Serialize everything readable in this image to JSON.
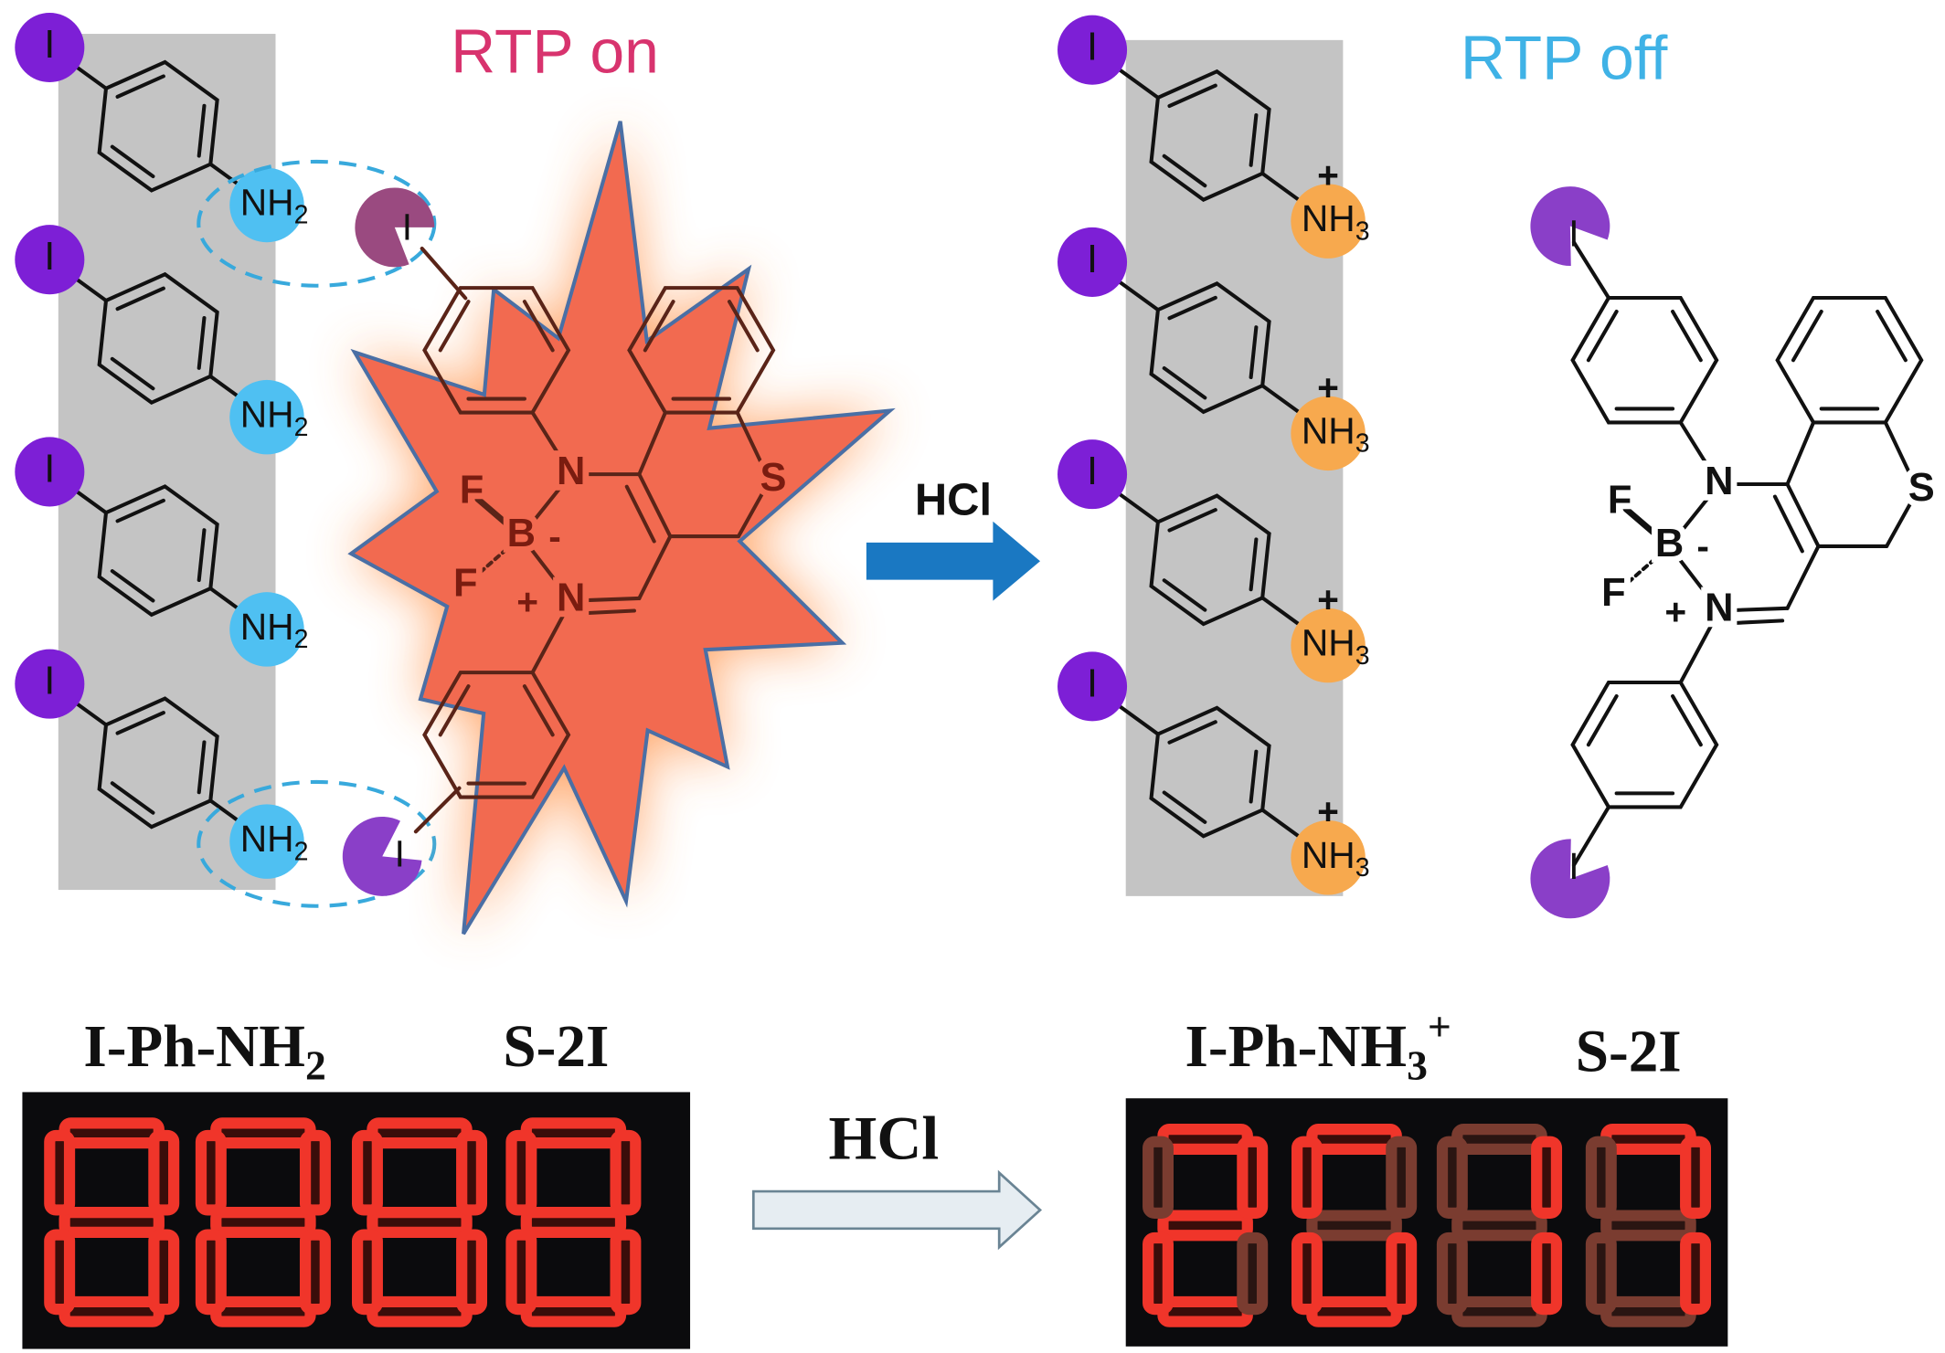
{
  "left_panel": {
    "label": "RTP on",
    "units": [
      {
        "iodine": "I",
        "amine": "NH",
        "subscript": "2"
      },
      {
        "iodine": "I",
        "amine": "NH",
        "subscript": "2"
      },
      {
        "iodine": "I",
        "amine": "NH",
        "subscript": "2"
      },
      {
        "iodine": "I",
        "amine": "NH",
        "subscript": "2"
      }
    ]
  },
  "right_panel": {
    "label": "RTP off",
    "units": [
      {
        "iodine": "I",
        "amine": "NH",
        "subscript": "3",
        "charge": "+"
      },
      {
        "iodine": "I",
        "amine": "NH",
        "subscript": "3",
        "charge": "+"
      },
      {
        "iodine": "I",
        "amine": "NH",
        "subscript": "3",
        "charge": "+"
      },
      {
        "iodine": "I",
        "amine": "NH",
        "subscript": "3",
        "charge": "+"
      }
    ]
  },
  "molecule": {
    "atoms": {
      "F1": "F",
      "F2": "F",
      "B": "B",
      "B_charge": "-",
      "N1": "N",
      "N2": "N",
      "N2_charge": "+",
      "S": "S",
      "I1": "I",
      "I2": "I"
    }
  },
  "reaction_arrow": {
    "label": "HCl"
  },
  "photos": {
    "left": {
      "host": {
        "main": "I-Ph-NH",
        "subscript": "2"
      },
      "guest": "S-2I"
    },
    "right": {
      "host": {
        "main": "I-Ph-NH",
        "subscript": "3",
        "superscript": "+"
      },
      "guest": "S-2I"
    },
    "arrow_label": "HCl"
  }
}
